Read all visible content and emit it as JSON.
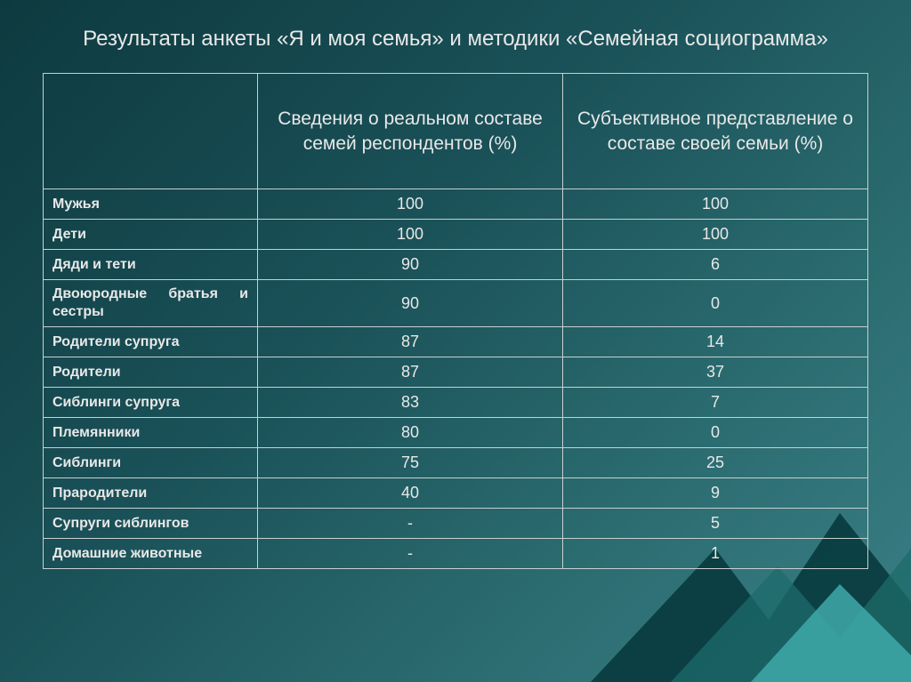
{
  "title": "Результаты анкеты «Я и моя семья» и методики «Семейная социограмма»",
  "colors": {
    "bg_gradient_from": "#0d3a3f",
    "bg_gradient_mid1": "#1a5158",
    "bg_gradient_mid2": "#2a6b6f",
    "bg_gradient_to": "#3a8087",
    "text": "#e8e8e8",
    "border": "#c8d0d0",
    "accent_shape_dark": "#05363a",
    "accent_shape_light": "#3fa9a9"
  },
  "typography": {
    "title_fontsize": 24,
    "header_fontsize": 21,
    "row_label_fontsize": 16,
    "value_fontsize": 18,
    "row_label_weight": "bold"
  },
  "table": {
    "type": "table",
    "column_widths_pct": [
      26,
      37,
      37
    ],
    "columns": [
      "",
      "Сведения о реальном составе семей респондентов (%)",
      "Субъективное представление о составе своей семьи (%)"
    ],
    "rows": [
      {
        "label": "Мужья",
        "v1": "100",
        "v2": "100",
        "justify": false
      },
      {
        "label": "Дети",
        "v1": "100",
        "v2": "100",
        "justify": false
      },
      {
        "label": "Дяди и тети",
        "v1": "90",
        "v2": "6",
        "justify": false
      },
      {
        "label": "Двоюродные братья и сестры",
        "v1": "90",
        "v2": "0",
        "justify": true
      },
      {
        "label": "Родители супруга",
        "v1": "87",
        "v2": "14",
        "justify": false
      },
      {
        "label": "Родители",
        "v1": "87",
        "v2": "37",
        "justify": false
      },
      {
        "label": "Сиблинги супруга",
        "v1": "83",
        "v2": "7",
        "justify": false
      },
      {
        "label": "Племянники",
        "v1": "80",
        "v2": "0",
        "justify": false
      },
      {
        "label": "Сиблинги",
        "v1": "75",
        "v2": "25",
        "justify": false
      },
      {
        "label": "Прародители",
        "v1": "40",
        "v2": "9",
        "justify": false
      },
      {
        "label": "Супруги сиблингов",
        "v1": "-",
        "v2": "5",
        "justify": false
      },
      {
        "label": "Домашние животные",
        "v1": "-",
        "v2": "1",
        "justify": false
      }
    ]
  }
}
